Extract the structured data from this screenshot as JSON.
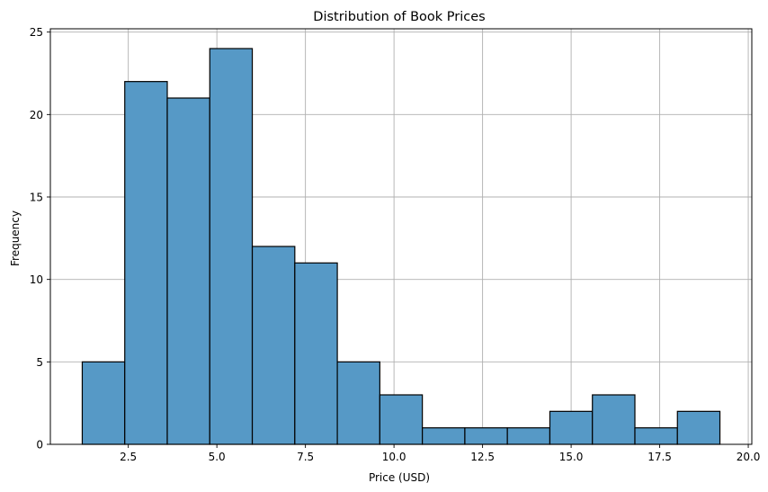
{
  "chart_data": {
    "type": "bar",
    "subtype": "histogram",
    "title": "Distribution of Book Prices",
    "xlabel": "Price (USD)",
    "ylabel": "Frequency",
    "bins": [
      {
        "x0": 1.2,
        "x1": 2.4,
        "count": 5
      },
      {
        "x0": 2.4,
        "x1": 3.6,
        "count": 22
      },
      {
        "x0": 3.6,
        "x1": 4.8,
        "count": 21
      },
      {
        "x0": 4.8,
        "x1": 6.0,
        "count": 24
      },
      {
        "x0": 6.0,
        "x1": 7.2,
        "count": 12
      },
      {
        "x0": 7.2,
        "x1": 8.4,
        "count": 11
      },
      {
        "x0": 8.4,
        "x1": 9.6,
        "count": 5
      },
      {
        "x0": 9.6,
        "x1": 10.8,
        "count": 3
      },
      {
        "x0": 10.8,
        "x1": 12.0,
        "count": 1
      },
      {
        "x0": 12.0,
        "x1": 13.2,
        "count": 1
      },
      {
        "x0": 13.2,
        "x1": 14.4,
        "count": 1
      },
      {
        "x0": 14.4,
        "x1": 15.6,
        "count": 2
      },
      {
        "x0": 15.6,
        "x1": 16.8,
        "count": 3
      },
      {
        "x0": 16.8,
        "x1": 18.0,
        "count": 1
      },
      {
        "x0": 18.0,
        "x1": 19.2,
        "count": 2
      }
    ],
    "xticks": [
      "2.5",
      "5.0",
      "7.5",
      "10.0",
      "12.5",
      "15.0",
      "17.5",
      "20.0"
    ],
    "yticks": [
      "0",
      "5",
      "10",
      "15",
      "20",
      "25"
    ],
    "xlim": [
      0.3,
      20.1
    ],
    "ylim": [
      0,
      25.2
    ],
    "grid": true,
    "colors": {
      "bar_fill": "#5699c6",
      "bar_edge": "#000000",
      "grid": "#b0b0b0"
    }
  }
}
